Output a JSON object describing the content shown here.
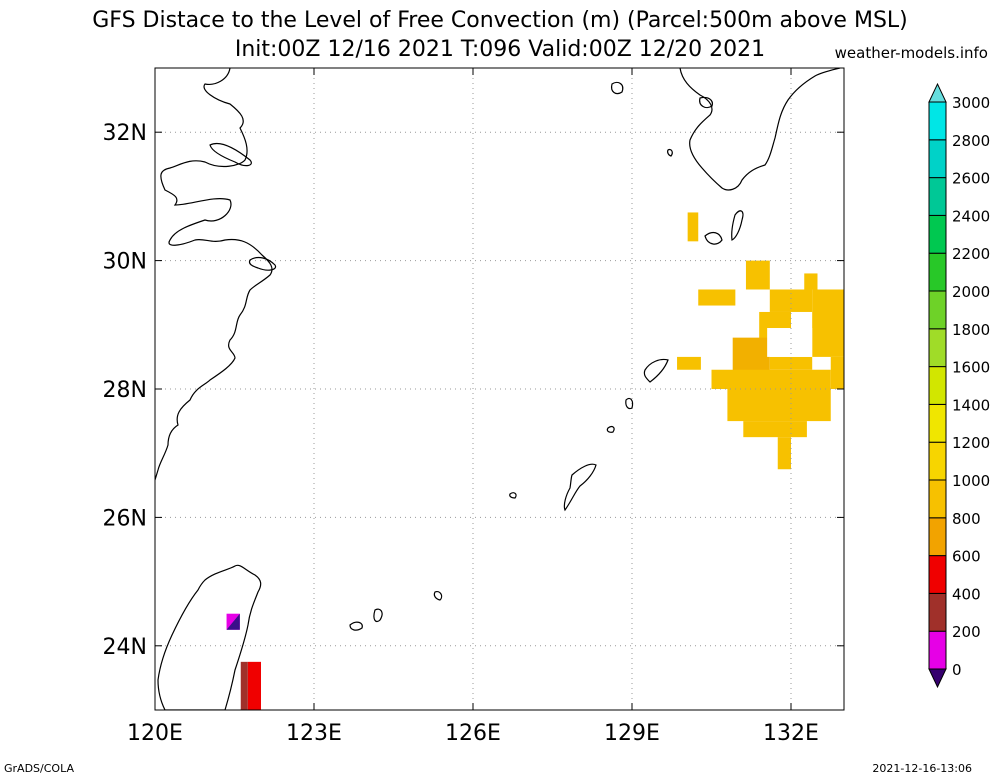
{
  "title": {
    "line1": "GFS Distace to the Level of Free Convection (m) (Parcel:500m above MSL)",
    "line2": "Init:00Z 12/16 2021 T:096 Valid:00Z 12/20 2021",
    "site": "weather-models.info"
  },
  "footer": {
    "left": "GrADS/COLA",
    "right": "2021-12-16-13:06"
  },
  "map": {
    "lon_ticks": [
      {
        "lon": 120,
        "label": "120E"
      },
      {
        "lon": 123,
        "label": "123E"
      },
      {
        "lon": 126,
        "label": "126E"
      },
      {
        "lon": 129,
        "label": "129E"
      },
      {
        "lon": 132,
        "label": "132E"
      }
    ],
    "lat_ticks": [
      {
        "lat": 24,
        "label": "24N"
      },
      {
        "lat": 26,
        "label": "26N"
      },
      {
        "lat": 28,
        "label": "28N"
      },
      {
        "lat": 30,
        "label": "30N"
      },
      {
        "lat": 32,
        "label": "32N"
      }
    ],
    "extent": {
      "lon_min": 120,
      "lon_max": 133,
      "lat_min": 23,
      "lat_max": 33
    },
    "grid": "dotted"
  },
  "colorbar": {
    "labels": [
      "0",
      "200",
      "400",
      "600",
      "800",
      "1000",
      "1200",
      "1400",
      "1600",
      "1800",
      "2000",
      "2200",
      "2400",
      "2600",
      "2800",
      "3000"
    ],
    "colors": [
      "#3b0f8a",
      "#e600e6",
      "#a0302a",
      "#f00000",
      "#f2a300",
      "#f7c100",
      "#f7d500",
      "#f0e600",
      "#d2e600",
      "#a0dc28",
      "#6ed228",
      "#28c828",
      "#00c850",
      "#00c896",
      "#00d2c8",
      "#00e6e6",
      "#50e6e6"
    ],
    "top_color": "#66dede",
    "bottom_color": "#36006e"
  },
  "fields": [
    {
      "lon0": 130.05,
      "lon1": 130.25,
      "lat0": 30.3,
      "lat1": 30.75,
      "color": "#f7c100"
    },
    {
      "lon0": 130.25,
      "lon1": 130.95,
      "lat0": 29.3,
      "lat1": 29.55,
      "color": "#f7c100"
    },
    {
      "lon0": 129.85,
      "lon1": 130.3,
      "lat0": 28.3,
      "lat1": 28.5,
      "color": "#f7c100"
    },
    {
      "lon0": 131.15,
      "lon1": 131.6,
      "lat0": 29.55,
      "lat1": 30.0,
      "color": "#f7c100"
    },
    {
      "lon0": 131.6,
      "lon1": 132.4,
      "lat0": 29.2,
      "lat1": 29.55,
      "color": "#f7c100"
    },
    {
      "lon0": 132.25,
      "lon1": 132.5,
      "lat0": 29.55,
      "lat1": 29.8,
      "color": "#f7c100"
    },
    {
      "lon0": 132.4,
      "lon1": 133.0,
      "lat0": 28.5,
      "lat1": 29.55,
      "color": "#f7c100"
    },
    {
      "lon0": 131.4,
      "lon1": 132.0,
      "lat0": 28.6,
      "lat1": 29.2,
      "color": "#f7c100"
    },
    {
      "lon0": 130.9,
      "lon1": 131.6,
      "lat0": 28.0,
      "lat1": 28.8,
      "color": "#f2b000"
    },
    {
      "lon0": 132.75,
      "lon1": 133.0,
      "lat0": 28.0,
      "lat1": 28.5,
      "color": "#f7c100"
    },
    {
      "lon0": 130.5,
      "lon1": 132.75,
      "lat0": 28.0,
      "lat1": 28.3,
      "color": "#f7c100"
    },
    {
      "lon0": 131.6,
      "lon1": 132.4,
      "lat0": 28.3,
      "lat1": 28.5,
      "color": "#f7c100"
    },
    {
      "lon0": 131.55,
      "lon1": 132.4,
      "lat0": 28.5,
      "lat1": 28.95,
      "color": "#ffffff"
    },
    {
      "lon0": 130.8,
      "lon1": 132.75,
      "lat0": 27.5,
      "lat1": 28.0,
      "color": "#f7c100"
    },
    {
      "lon0": 131.1,
      "lon1": 132.3,
      "lat0": 27.25,
      "lat1": 27.5,
      "color": "#f7c100"
    },
    {
      "lon0": 131.75,
      "lon1": 132.0,
      "lat0": 26.75,
      "lat1": 27.25,
      "color": "#f7c100"
    },
    {
      "lon0": 121.35,
      "lon1": 121.6,
      "lat0": 24.25,
      "lat1": 24.5,
      "color": "#e600e6"
    },
    {
      "lon0": 121.75,
      "lon1": 122.0,
      "lat0": 23.0,
      "lat1": 23.75,
      "color": "#f00000"
    }
  ]
}
